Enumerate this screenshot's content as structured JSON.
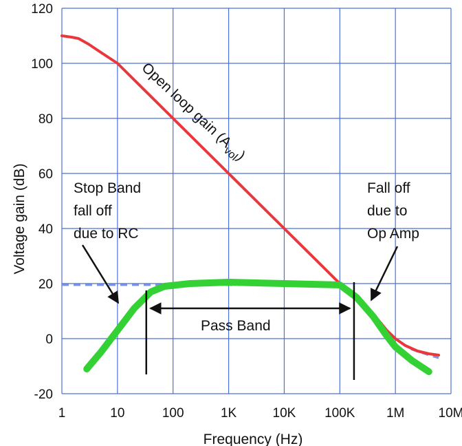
{
  "chart_data": {
    "type": "line",
    "xlabel": "Frequency (Hz)",
    "ylabel": "Voltage gain (dB)",
    "x_scale": "log",
    "xlim_hz": [
      1,
      10000000
    ],
    "ylim": [
      -20,
      120
    ],
    "grid": true,
    "x_ticks": [
      {
        "value": 1,
        "label": "1"
      },
      {
        "value": 10,
        "label": "10"
      },
      {
        "value": 100,
        "label": "100"
      },
      {
        "value": 1000,
        "label": "1K"
      },
      {
        "value": 10000,
        "label": "10K"
      },
      {
        "value": 100000,
        "label": "100K"
      },
      {
        "value": 1000000,
        "label": "1M"
      },
      {
        "value": 10000000,
        "label": "10M"
      }
    ],
    "y_ticks": [
      {
        "value": 120,
        "label": "120"
      },
      {
        "value": 100,
        "label": "100"
      },
      {
        "value": 80,
        "label": "80"
      },
      {
        "value": 60,
        "label": "60"
      },
      {
        "value": 40,
        "label": "40"
      },
      {
        "value": 20,
        "label": "20"
      },
      {
        "value": 0,
        "label": "0"
      },
      {
        "value": -20,
        "label": "-20"
      }
    ],
    "series": [
      {
        "key": "open_loop",
        "color": "#e8383d",
        "points": [
          [
            1,
            110
          ],
          [
            1.5,
            109.5
          ],
          [
            2,
            109
          ],
          [
            3,
            107
          ],
          [
            5,
            104
          ],
          [
            10,
            100
          ],
          [
            100,
            80
          ],
          [
            1000,
            60
          ],
          [
            10000,
            40
          ],
          [
            100000,
            20
          ],
          [
            200000,
            15
          ],
          [
            400000,
            9
          ],
          [
            700000,
            3
          ],
          [
            1000000,
            0
          ],
          [
            1500000,
            -2.5
          ],
          [
            2500000,
            -4.5
          ],
          [
            4000000,
            -5.5
          ],
          [
            6000000,
            -6
          ]
        ]
      },
      {
        "key": "ideal_dashed",
        "color": "#7d96e0",
        "points": [
          [
            1,
            19.5
          ],
          [
            100,
            19.5
          ],
          [
            100000,
            19.5
          ],
          [
            200000,
            15
          ],
          [
            400000,
            9
          ],
          [
            700000,
            3
          ],
          [
            1000000,
            0
          ],
          [
            2000000,
            -4
          ],
          [
            4000000,
            -6
          ],
          [
            6000000,
            -7
          ]
        ]
      },
      {
        "key": "band_response",
        "color": "#33d133",
        "points": [
          [
            2.8,
            -11
          ],
          [
            5,
            -5
          ],
          [
            10,
            3
          ],
          [
            20,
            11
          ],
          [
            40,
            17
          ],
          [
            70,
            19
          ],
          [
            200,
            20
          ],
          [
            1000,
            20.5
          ],
          [
            10000,
            20
          ],
          [
            100000,
            19.5
          ],
          [
            200000,
            15
          ],
          [
            400000,
            8
          ],
          [
            700000,
            1
          ],
          [
            1000000,
            -3
          ],
          [
            2000000,
            -8
          ],
          [
            4000000,
            -12
          ]
        ]
      }
    ],
    "annotations": {
      "open_loop": "Open loop gain (A",
      "open_loop_sub": "vol",
      "open_loop_close": ")",
      "stop_band": [
        "Stop Band",
        "fall off",
        "due to RC"
      ],
      "fall_off": [
        "Fall off",
        "due to",
        "Op Amp"
      ],
      "pass_band": "Pass Band"
    },
    "markers_hz": [
      33,
      180000
    ]
  }
}
